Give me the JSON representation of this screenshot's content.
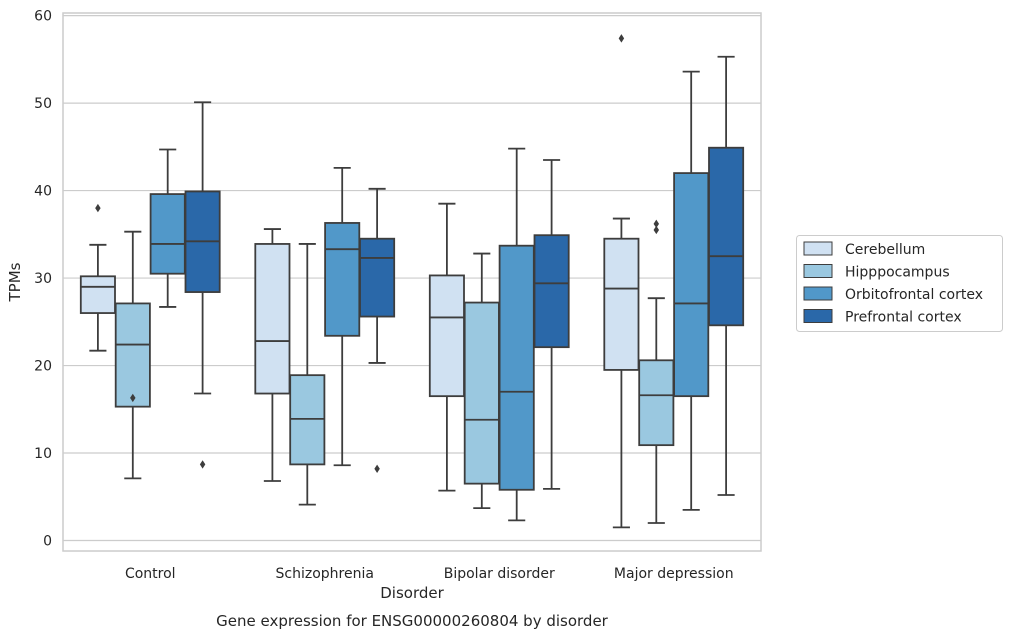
{
  "chart_data": {
    "type": "box",
    "title": "",
    "caption": "Gene expression for ENSG00000260804 by disorder",
    "xlabel": "Disorder",
    "ylabel": "TPMs",
    "ylim": [
      -1.2,
      60.3
    ],
    "yticks": [
      0,
      10,
      20,
      30,
      40,
      50,
      60
    ],
    "grid": "horizontal",
    "legend_position": "right",
    "categories": [
      "Control",
      "Schizophrenia",
      "Bipolar disorder",
      "Major depression"
    ],
    "series": [
      {
        "name": "Cerebellum",
        "color": "#d0e1f2",
        "boxes": [
          {
            "whislo": 21.7,
            "q1": 26.0,
            "med": 29.0,
            "q3": 30.2,
            "whishi": 33.8,
            "fliers": [
              38.0
            ]
          },
          {
            "whislo": 6.8,
            "q1": 16.8,
            "med": 22.8,
            "q3": 33.9,
            "whishi": 35.6,
            "fliers": []
          },
          {
            "whislo": 5.7,
            "q1": 16.5,
            "med": 25.5,
            "q3": 30.3,
            "whishi": 38.5,
            "fliers": []
          },
          {
            "whislo": 1.5,
            "q1": 19.5,
            "med": 28.8,
            "q3": 34.5,
            "whishi": 36.8,
            "fliers": [
              57.4
            ]
          }
        ]
      },
      {
        "name": "Hipppocampus",
        "color": "#9ac8e0",
        "boxes": [
          {
            "whislo": 7.1,
            "q1": 15.3,
            "med": 22.4,
            "q3": 27.1,
            "whishi": 35.3,
            "fliers": [
              16.3
            ]
          },
          {
            "whislo": 4.1,
            "q1": 8.7,
            "med": 13.9,
            "q3": 18.9,
            "whishi": 33.9,
            "fliers": []
          },
          {
            "whislo": 3.7,
            "q1": 6.5,
            "med": 13.8,
            "q3": 27.2,
            "whishi": 32.8,
            "fliers": []
          },
          {
            "whislo": 2.0,
            "q1": 10.9,
            "med": 16.6,
            "q3": 20.6,
            "whishi": 27.7,
            "fliers": [
              35.5,
              36.2
            ]
          }
        ]
      },
      {
        "name": "Orbitofrontal cortex",
        "color": "#5198c9",
        "boxes": [
          {
            "whislo": 26.7,
            "q1": 30.5,
            "med": 33.9,
            "q3": 39.6,
            "whishi": 44.7,
            "fliers": []
          },
          {
            "whislo": 8.6,
            "q1": 23.4,
            "med": 33.3,
            "q3": 36.3,
            "whishi": 42.6,
            "fliers": []
          },
          {
            "whislo": 2.3,
            "q1": 5.8,
            "med": 17.0,
            "q3": 33.7,
            "whishi": 44.8,
            "fliers": []
          },
          {
            "whislo": 3.5,
            "q1": 16.5,
            "med": 27.1,
            "q3": 42.0,
            "whishi": 53.6,
            "fliers": []
          }
        ]
      },
      {
        "name": "Prefrontal cortex",
        "color": "#2a68a9",
        "boxes": [
          {
            "whislo": 16.8,
            "q1": 28.4,
            "med": 34.2,
            "q3": 39.9,
            "whishi": 50.1,
            "fliers": [
              8.7
            ]
          },
          {
            "whislo": 20.3,
            "q1": 25.6,
            "med": 32.3,
            "q3": 34.5,
            "whishi": 40.2,
            "fliers": [
              8.2
            ]
          },
          {
            "whislo": 5.9,
            "q1": 22.1,
            "med": 29.4,
            "q3": 34.9,
            "whishi": 43.5,
            "fliers": []
          },
          {
            "whislo": 5.2,
            "q1": 24.6,
            "med": 32.5,
            "q3": 44.9,
            "whishi": 55.3,
            "fliers": []
          }
        ]
      }
    ]
  }
}
